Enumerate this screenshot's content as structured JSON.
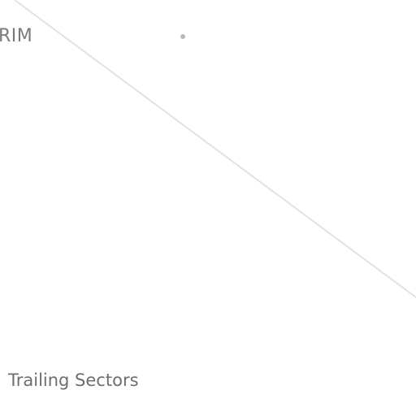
{
  "brand": {
    "visible_text": "RIM"
  },
  "section": {
    "title": "Trailing Sectors"
  },
  "colors": {
    "text": "#7a7a7a",
    "title_text": "#6e6e6e",
    "divider": "#e2e2e2",
    "dot": "#b8b8b8",
    "background": "#ffffff"
  },
  "icons": {
    "dot": "status-dot-icon"
  }
}
